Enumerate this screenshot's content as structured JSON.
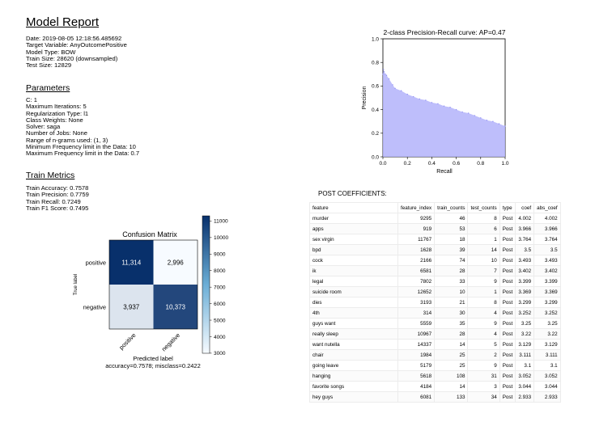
{
  "report": {
    "title": "Model Report",
    "meta": [
      "Date: 2019-08-05 12:18:56.485692",
      "Target Variable: AnyOutcomePositive",
      "Model Type: BOW",
      "Train Size: 28620 (downsampled)",
      "Test Size: 12829"
    ],
    "parameters_heading": "Parameters",
    "parameters": [
      "C: 1",
      "Maximum Iterations: 5",
      "Regularization Type: l1",
      "Class Weights: None",
      "Solver: saga",
      "Number of Jobs: None",
      "Range of n-grams used: (1, 3)",
      "Minimum Frequency limit in the Data: 10",
      "Maximum Frequency limit in the Data: 0.7"
    ],
    "metrics_heading": "Train Metrics",
    "metrics": [
      "Train Accuracy: 0.7578",
      "Train Precision: 0.7759",
      "Train Recall: 0.7249",
      "Train F1 Score: 0.7495"
    ]
  },
  "chart_data": [
    {
      "type": "area",
      "title": "2-class Precision-Recall curve: AP=0.47",
      "xlabel": "Recall",
      "ylabel": "Precision",
      "xlim": [
        0,
        1
      ],
      "ylim": [
        0,
        1
      ],
      "xticks": [
        "0.0",
        "0.2",
        "0.4",
        "0.6",
        "0.8",
        "1.0"
      ],
      "yticks": [
        "0.0",
        "0.2",
        "0.4",
        "0.6",
        "0.8",
        "1.0"
      ],
      "color": "#b3b3fa",
      "x": [
        0,
        0.005,
        0.01,
        0.02,
        0.03,
        0.05,
        0.08,
        0.1,
        0.15,
        0.2,
        0.25,
        0.3,
        0.35,
        0.4,
        0.45,
        0.5,
        0.55,
        0.6,
        0.65,
        0.7,
        0.75,
        0.8,
        0.85,
        0.9,
        0.95,
        1.0
      ],
      "y": [
        0.7,
        0.74,
        0.72,
        0.7,
        0.69,
        0.66,
        0.61,
        0.58,
        0.56,
        0.53,
        0.51,
        0.49,
        0.48,
        0.46,
        0.45,
        0.43,
        0.42,
        0.4,
        0.38,
        0.37,
        0.35,
        0.33,
        0.31,
        0.3,
        0.28,
        0.26
      ]
    },
    {
      "type": "heatmap",
      "title": "Confusion Matrix",
      "ylabel": "True label",
      "xlabel": "Predicted label",
      "footer": "accuracy=0.7578; misclass=0.2422",
      "rows": [
        "positive",
        "negative"
      ],
      "cols": [
        "positive",
        "negative"
      ],
      "values": [
        [
          11314,
          2996
        ],
        [
          3937,
          10373
        ]
      ],
      "value_labels": [
        [
          "11,314",
          "2,996"
        ],
        [
          "3,937",
          "10,373"
        ]
      ],
      "colorbar": {
        "min": 3000,
        "max": 11000,
        "ticks": [
          "11000",
          "10000",
          "9000",
          "8000",
          "7000",
          "6000",
          "5000",
          "4000",
          "3000"
        ]
      }
    },
    {
      "type": "table",
      "title": "POST COEFFICIENTS:",
      "columns": [
        "feature",
        "feature_index",
        "train_counts",
        "test_counts",
        "type",
        "coef",
        "abs_coef"
      ],
      "rows": [
        [
          "murder",
          "9295",
          "46",
          "8",
          "Post",
          "4.002",
          "4.002"
        ],
        [
          "apps",
          "919",
          "53",
          "6",
          "Post",
          "3.966",
          "3.966"
        ],
        [
          "sex virgin",
          "11767",
          "18",
          "1",
          "Post",
          "3.764",
          "3.764"
        ],
        [
          "bpd",
          "1628",
          "39",
          "14",
          "Post",
          "3.5",
          "3.5"
        ],
        [
          "cock",
          "2166",
          "74",
          "10",
          "Post",
          "3.493",
          "3.493"
        ],
        [
          "ik",
          "6581",
          "28",
          "7",
          "Post",
          "3.402",
          "3.402"
        ],
        [
          "legal",
          "7802",
          "33",
          "9",
          "Post",
          "3.399",
          "3.399"
        ],
        [
          "suicide room",
          "12652",
          "10",
          "1",
          "Post",
          "3.369",
          "3.369"
        ],
        [
          "dies",
          "3193",
          "21",
          "8",
          "Post",
          "3.299",
          "3.299"
        ],
        [
          "4th",
          "314",
          "30",
          "4",
          "Post",
          "3.252",
          "3.252"
        ],
        [
          "guys want",
          "5559",
          "35",
          "9",
          "Post",
          "3.25",
          "3.25"
        ],
        [
          "really sleep",
          "10967",
          "28",
          "4",
          "Post",
          "3.22",
          "3.22"
        ],
        [
          "want nutella",
          "14337",
          "14",
          "5",
          "Post",
          "3.129",
          "3.129"
        ],
        [
          "chair",
          "1984",
          "25",
          "2",
          "Post",
          "3.111",
          "3.111"
        ],
        [
          "going leave",
          "5179",
          "25",
          "9",
          "Post",
          "3.1",
          "3.1"
        ],
        [
          "hanging",
          "5618",
          "108",
          "31",
          "Post",
          "3.052",
          "3.052"
        ],
        [
          "favorite songs",
          "4184",
          "14",
          "3",
          "Post",
          "3.044",
          "3.044"
        ],
        [
          "hey guys",
          "6081",
          "133",
          "34",
          "Post",
          "2.933",
          "2.933"
        ]
      ]
    }
  ]
}
